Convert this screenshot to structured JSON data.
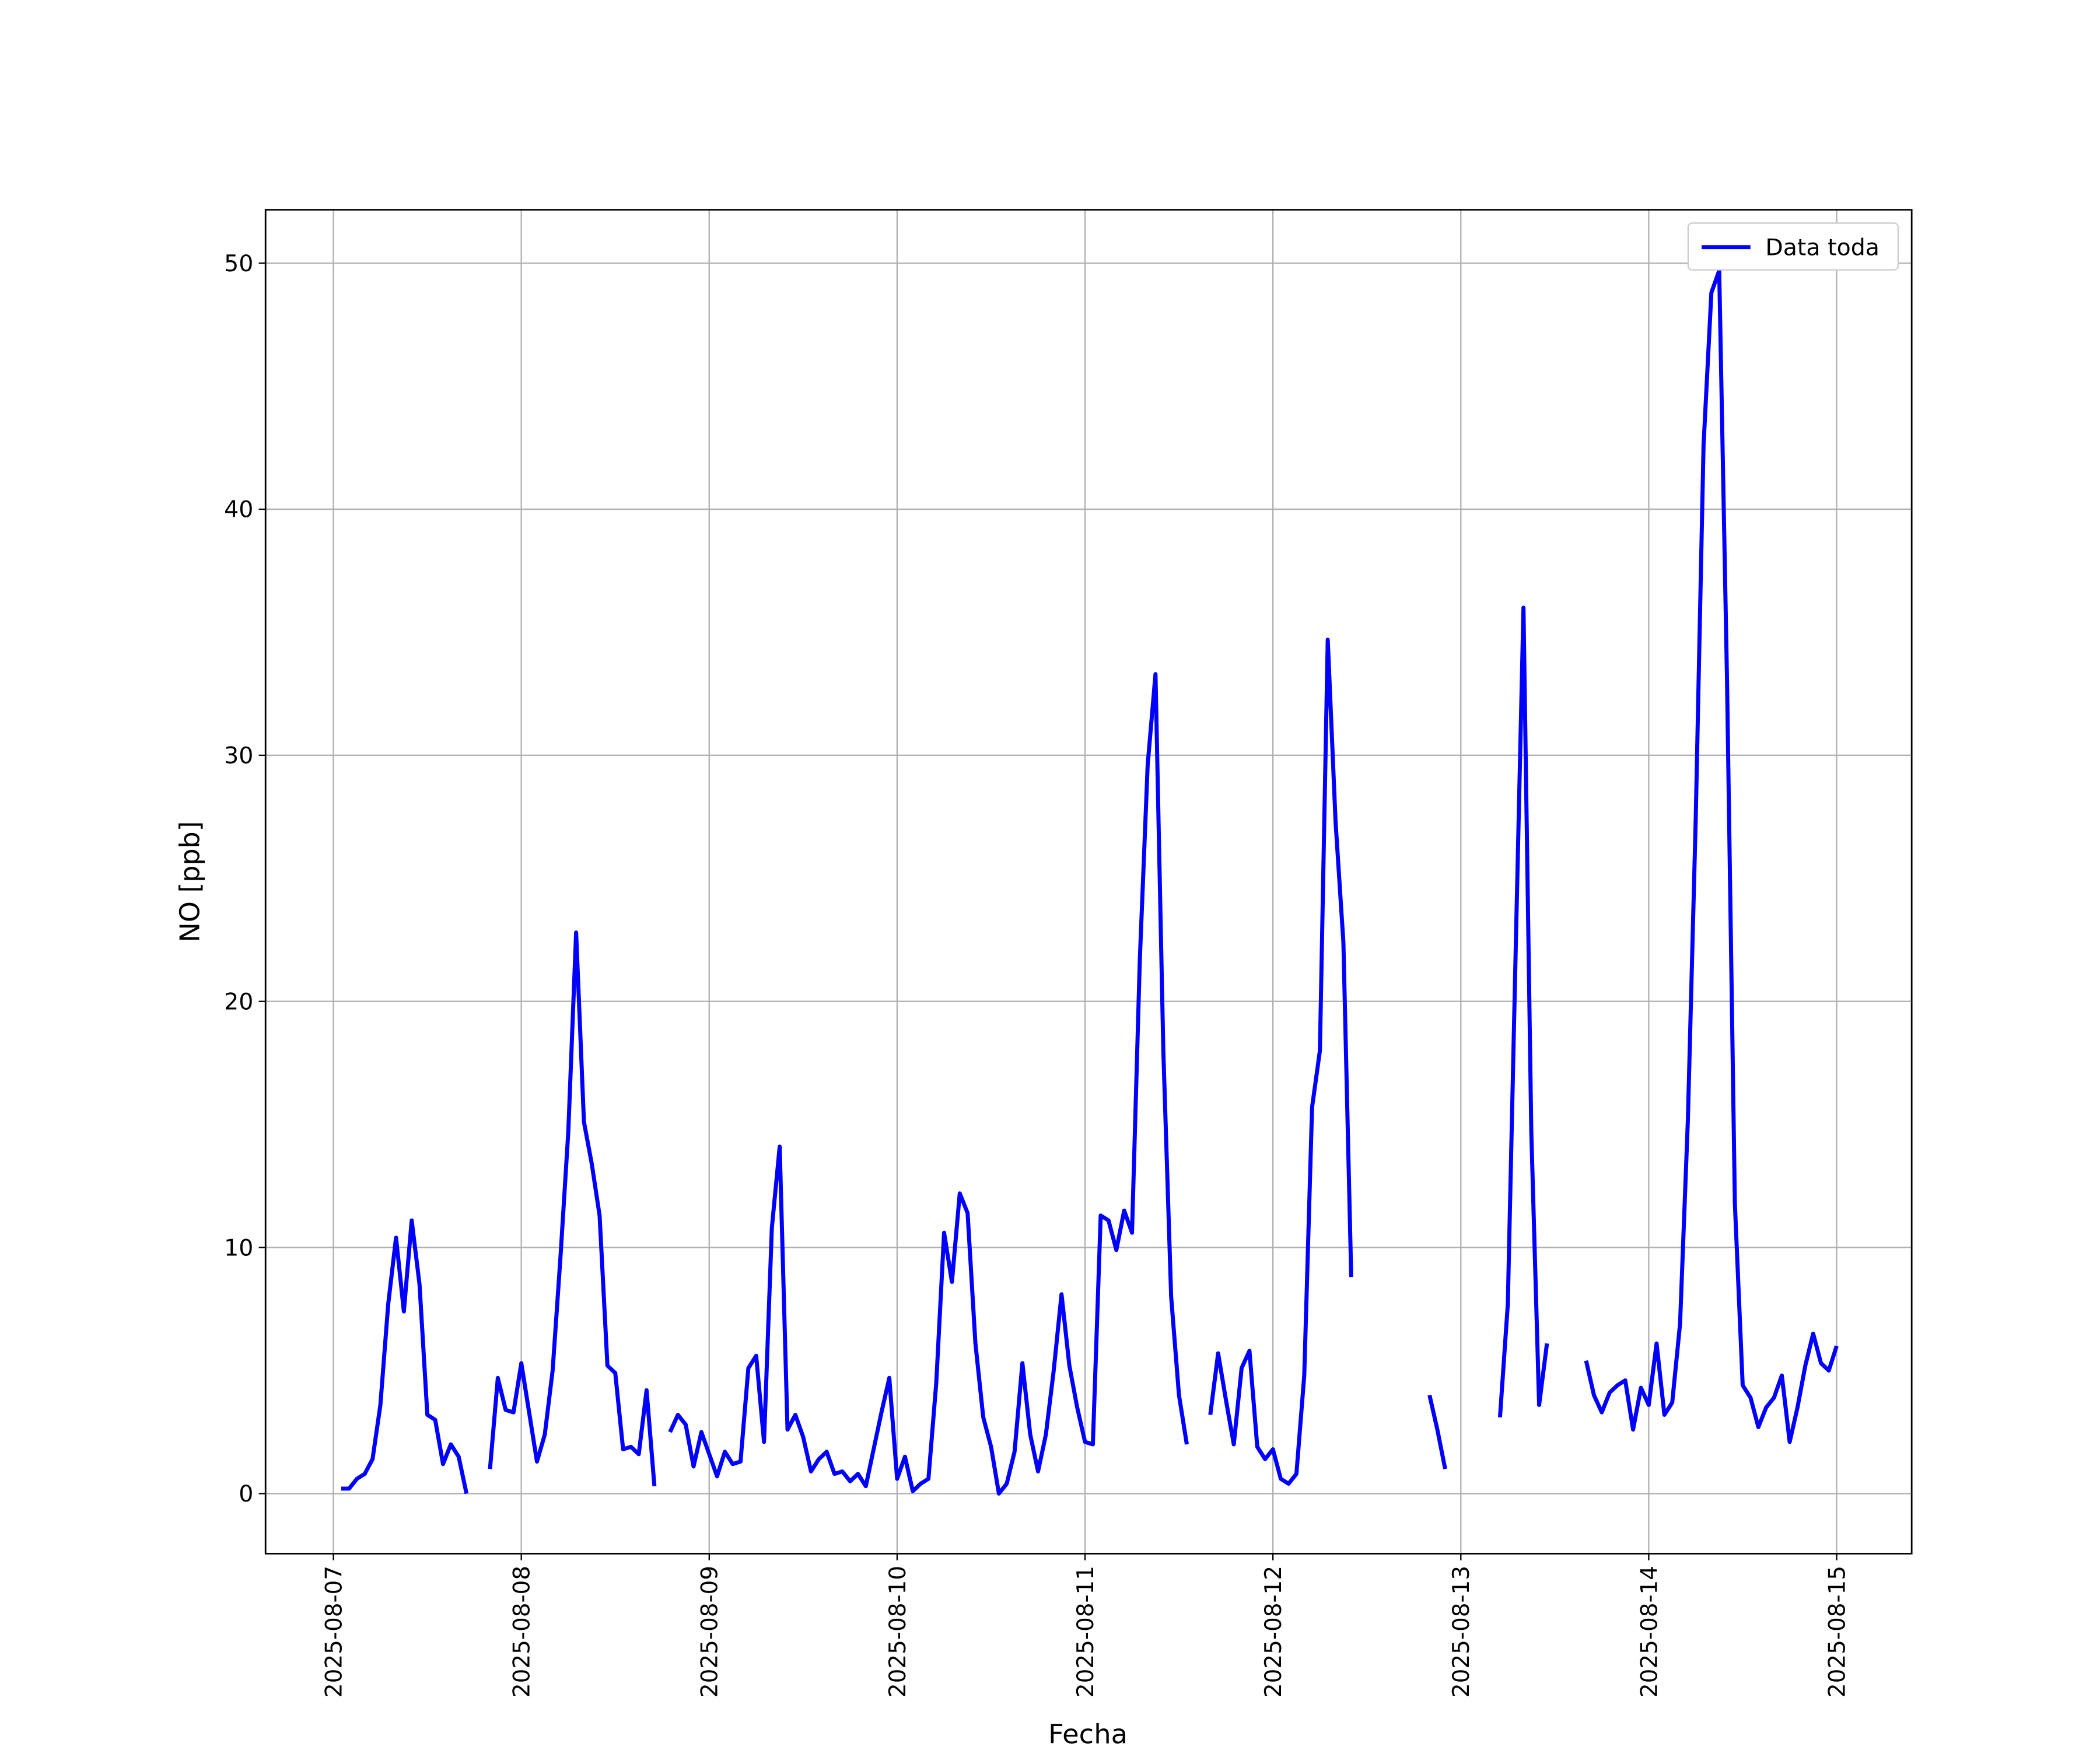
{
  "chart_data": {
    "type": "line",
    "xlabel": "Fecha",
    "ylabel": "NO [ppb]",
    "legend": "upper right",
    "grid": true,
    "xlim": [
      "2025-08-06 15:20",
      "2025-08-15 09:35"
    ],
    "ylim": [
      -2.44,
      52.17
    ],
    "xticks": [
      "2025-08-07",
      "2025-08-08",
      "2025-08-09",
      "2025-08-10",
      "2025-08-11",
      "2025-08-12",
      "2025-08-13",
      "2025-08-14",
      "2025-08-15"
    ],
    "yticks": [
      0,
      10,
      20,
      30,
      40,
      50
    ],
    "x": [
      "2025-08-07 01:00",
      "2025-08-07 02:00",
      "2025-08-07 03:00",
      "2025-08-07 04:00",
      "2025-08-07 05:00",
      "2025-08-07 06:00",
      "2025-08-07 07:00",
      "2025-08-07 08:00",
      "2025-08-07 09:00",
      "2025-08-07 10:00",
      "2025-08-07 11:00",
      "2025-08-07 12:00",
      "2025-08-07 13:00",
      "2025-08-07 14:00",
      "2025-08-07 15:00",
      "2025-08-07 16:00",
      "2025-08-07 17:00",
      "2025-08-07 18:00",
      "2025-08-07 19:00",
      "2025-08-07 20:00",
      "2025-08-07 21:00",
      "2025-08-07 22:00",
      "2025-08-07 23:00",
      "2025-08-08 00:00",
      "2025-08-08 01:00",
      "2025-08-08 02:00",
      "2025-08-08 03:00",
      "2025-08-08 04:00",
      "2025-08-08 05:00",
      "2025-08-08 06:00",
      "2025-08-08 07:00",
      "2025-08-08 08:00",
      "2025-08-08 09:00",
      "2025-08-08 10:00",
      "2025-08-08 11:00",
      "2025-08-08 12:00",
      "2025-08-08 13:00",
      "2025-08-08 14:00",
      "2025-08-08 15:00",
      "2025-08-08 16:00",
      "2025-08-08 17:00",
      "2025-08-08 18:00",
      "2025-08-08 19:00",
      "2025-08-08 20:00",
      "2025-08-08 21:00",
      "2025-08-08 22:00",
      "2025-08-08 23:00",
      "2025-08-09 00:00",
      "2025-08-09 01:00",
      "2025-08-09 02:00",
      "2025-08-09 03:00",
      "2025-08-09 04:00",
      "2025-08-09 05:00",
      "2025-08-09 06:00",
      "2025-08-09 07:00",
      "2025-08-09 08:00",
      "2025-08-09 09:00",
      "2025-08-09 10:00",
      "2025-08-09 11:00",
      "2025-08-09 12:00",
      "2025-08-09 13:00",
      "2025-08-09 14:00",
      "2025-08-09 15:00",
      "2025-08-09 16:00",
      "2025-08-09 17:00",
      "2025-08-09 18:00",
      "2025-08-09 19:00",
      "2025-08-09 20:00",
      "2025-08-09 21:00",
      "2025-08-09 22:00",
      "2025-08-09 23:00",
      "2025-08-10 00:00",
      "2025-08-10 01:00",
      "2025-08-10 02:00",
      "2025-08-10 03:00",
      "2025-08-10 04:00",
      "2025-08-10 05:00",
      "2025-08-10 06:00",
      "2025-08-10 07:00",
      "2025-08-10 08:00",
      "2025-08-10 09:00",
      "2025-08-10 10:00",
      "2025-08-10 11:00",
      "2025-08-10 12:00",
      "2025-08-10 13:00",
      "2025-08-10 14:00",
      "2025-08-10 15:00",
      "2025-08-10 16:00",
      "2025-08-10 17:00",
      "2025-08-10 18:00",
      "2025-08-10 19:00",
      "2025-08-10 20:00",
      "2025-08-10 21:00",
      "2025-08-10 22:00",
      "2025-08-10 23:00",
      "2025-08-11 00:00",
      "2025-08-11 01:00",
      "2025-08-11 02:00",
      "2025-08-11 03:00",
      "2025-08-11 04:00",
      "2025-08-11 05:00",
      "2025-08-11 06:00",
      "2025-08-11 07:00",
      "2025-08-11 08:00",
      "2025-08-11 09:00",
      "2025-08-11 10:00",
      "2025-08-11 11:00",
      "2025-08-11 12:00",
      "2025-08-11 13:00",
      "2025-08-11 14:00",
      "2025-08-11 15:00",
      "2025-08-11 16:00",
      "2025-08-11 17:00",
      "2025-08-11 18:00",
      "2025-08-11 19:00",
      "2025-08-11 20:00",
      "2025-08-11 21:00",
      "2025-08-11 22:00",
      "2025-08-11 23:00",
      "2025-08-12 00:00",
      "2025-08-12 01:00",
      "2025-08-12 02:00",
      "2025-08-12 03:00",
      "2025-08-12 04:00",
      "2025-08-12 05:00",
      "2025-08-12 06:00",
      "2025-08-12 07:00",
      "2025-08-12 08:00",
      "2025-08-12 09:00",
      "2025-08-12 10:00",
      "2025-08-12 11:00",
      "2025-08-12 12:00",
      "2025-08-12 13:00",
      "2025-08-12 14:00",
      "2025-08-12 15:00",
      "2025-08-12 16:00",
      "2025-08-12 17:00",
      "2025-08-12 18:00",
      "2025-08-12 19:00",
      "2025-08-12 20:00",
      "2025-08-12 21:00",
      "2025-08-12 22:00",
      "2025-08-12 23:00",
      "2025-08-13 00:00",
      "2025-08-13 01:00",
      "2025-08-13 02:00",
      "2025-08-13 03:00",
      "2025-08-13 04:00",
      "2025-08-13 05:00",
      "2025-08-13 06:00",
      "2025-08-13 07:00",
      "2025-08-13 08:00",
      "2025-08-13 09:00",
      "2025-08-13 10:00",
      "2025-08-13 11:00",
      "2025-08-13 12:00",
      "2025-08-13 13:00",
      "2025-08-13 14:00",
      "2025-08-13 15:00",
      "2025-08-13 16:00",
      "2025-08-13 17:00",
      "2025-08-13 18:00",
      "2025-08-13 19:00",
      "2025-08-13 20:00",
      "2025-08-13 21:00",
      "2025-08-13 22:00",
      "2025-08-13 23:00",
      "2025-08-14 00:00",
      "2025-08-14 01:00",
      "2025-08-14 02:00",
      "2025-08-14 03:00",
      "2025-08-14 04:00",
      "2025-08-14 05:00",
      "2025-08-14 06:00",
      "2025-08-14 07:00",
      "2025-08-14 08:00",
      "2025-08-14 09:00",
      "2025-08-14 10:00",
      "2025-08-14 11:00",
      "2025-08-14 12:00",
      "2025-08-14 13:00",
      "2025-08-14 14:00",
      "2025-08-14 15:00",
      "2025-08-14 16:00",
      "2025-08-14 17:00",
      "2025-08-14 18:00",
      "2025-08-14 19:00",
      "2025-08-14 20:00",
      "2025-08-14 21:00",
      "2025-08-14 22:00",
      "2025-08-14 23:00",
      "2025-08-15 00:00"
    ],
    "series": [
      {
        "name": "Data toda",
        "color": "#0000ff",
        "values": [
          0.2,
          0.2,
          0.6,
          0.8,
          1.4,
          3.6,
          7.7,
          10.4,
          7.4,
          11.1,
          8.5,
          3.2,
          3.0,
          1.2,
          2.0,
          1.5,
          0.0,
          null,
          null,
          1.0,
          4.7,
          3.4,
          3.3,
          5.3,
          3.3,
          1.3,
          2.4,
          5.0,
          9.6,
          14.7,
          22.8,
          15.1,
          13.4,
          11.3,
          5.2,
          4.9,
          1.8,
          1.9,
          1.6,
          4.2,
          0.3,
          null,
          2.5,
          3.2,
          2.8,
          1.1,
          2.5,
          1.6,
          0.7,
          1.7,
          1.2,
          1.3,
          5.1,
          5.6,
          2.1,
          10.8,
          14.1,
          2.6,
          3.2,
          2.3,
          0.9,
          1.4,
          1.7,
          0.8,
          0.9,
          0.5,
          0.8,
          0.3,
          1.8,
          3.3,
          4.7,
          0.6,
          1.5,
          0.1,
          0.4,
          0.6,
          4.5,
          10.6,
          8.6,
          12.2,
          11.4,
          6.1,
          3.1,
          1.9,
          0.0,
          0.4,
          1.7,
          5.3,
          2.4,
          0.9,
          2.4,
          5.0,
          8.1,
          5.2,
          3.5,
          2.1,
          2.0,
          11.3,
          11.1,
          9.9,
          11.5,
          10.6,
          21.7,
          29.6,
          33.3,
          18.0,
          8.0,
          4.0,
          2.0,
          null,
          null,
          3.2,
          5.7,
          3.8,
          2.0,
          5.1,
          5.8,
          1.9,
          1.4,
          1.8,
          0.6,
          0.4,
          0.8,
          4.8,
          15.7,
          18.0,
          34.7,
          27.3,
          22.4,
          8.8,
          null,
          null,
          null,
          null,
          null,
          null,
          null,
          null,
          null,
          4.0,
          2.6,
          1.0,
          null,
          null,
          null,
          null,
          null,
          null,
          3.1,
          7.7,
          22.0,
          36.0,
          14.7,
          3.6,
          6.1,
          null,
          null,
          null,
          null,
          5.4,
          4.0,
          3.3,
          4.1,
          4.4,
          4.6,
          2.6,
          4.3,
          3.6,
          6.1,
          3.2,
          3.7,
          6.9,
          15.2,
          27.4,
          42.6,
          48.8,
          49.7,
          33.0,
          11.8,
          4.4,
          3.9,
          2.7,
          3.5,
          3.9,
          4.8,
          2.1,
          3.5,
          5.2,
          6.5,
          5.3,
          5.0,
          6.0
        ]
      }
    ]
  }
}
